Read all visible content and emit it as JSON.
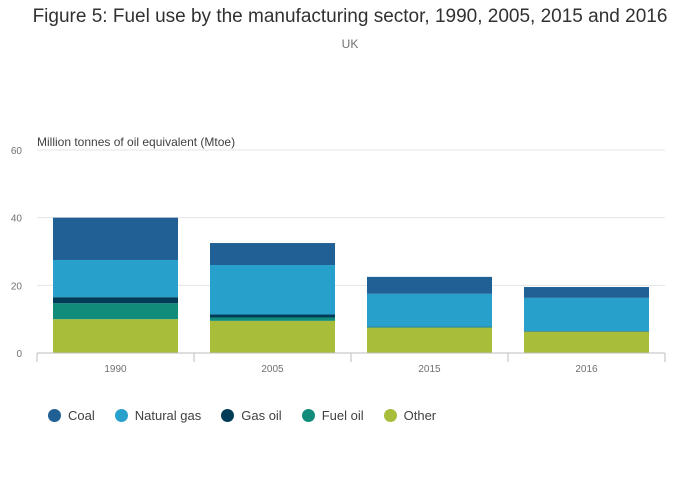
{
  "chart_data": {
    "type": "bar",
    "stacked": true,
    "title": "Figure 5: Fuel use by the manufacturing sector, 1990, 2005, 2015 and 2016",
    "subtitle": "UK",
    "ylabel": "Million tonnes of oil equivalent (Mtoe)",
    "xlabel": "",
    "ylim": [
      0,
      60
    ],
    "yticks": [
      0,
      20,
      40,
      60
    ],
    "grid": true,
    "legend_position": "bottom",
    "categories": [
      "1990",
      "2005",
      "2015",
      "2016"
    ],
    "series": [
      {
        "name": "Other",
        "color": "#a8bd3a",
        "values": [
          10.0,
          9.5,
          7.5,
          6.3
        ]
      },
      {
        "name": "Fuel oil",
        "color": "#118c7b",
        "values": [
          4.7,
          1.0,
          0.2,
          0.1
        ]
      },
      {
        "name": "Gas oil",
        "color": "#003c57",
        "values": [
          1.8,
          0.9,
          0.1,
          0.1
        ]
      },
      {
        "name": "Natural gas",
        "color": "#27a0cc",
        "values": [
          11.0,
          14.6,
          9.7,
          9.8
        ]
      },
      {
        "name": "Coal",
        "color": "#206095",
        "values": [
          12.5,
          6.5,
          5.0,
          3.2
        ]
      }
    ],
    "legend_order": [
      "Coal",
      "Natural gas",
      "Gas oil",
      "Fuel oil",
      "Other"
    ]
  }
}
